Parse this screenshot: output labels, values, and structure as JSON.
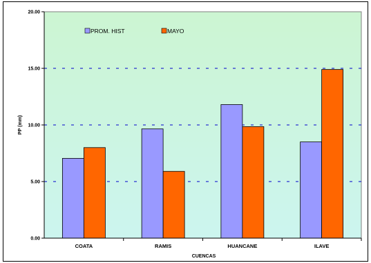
{
  "chart_data": {
    "type": "bar",
    "categories": [
      "COATA",
      "RAMIS",
      "HUANCANE",
      "ILAVE"
    ],
    "series": [
      {
        "name": "PROM. HIST",
        "values": [
          7.05,
          9.65,
          11.8,
          8.5
        ],
        "color": "#9999ff"
      },
      {
        "name": "MAYO",
        "values": [
          8.0,
          5.9,
          9.85,
          14.9
        ],
        "color": "#ff6600"
      }
    ],
    "title": "",
    "xlabel": "CUENCAS",
    "ylabel": "PP (mm)",
    "ylim": [
      0,
      20
    ],
    "yticks": [
      "0.00",
      "5.00",
      "10.00",
      "15.00",
      "20.00"
    ],
    "grid": true,
    "legend_placement": "top-left",
    "background_gradient": [
      "#ccf5d2",
      "#ccf5ef"
    ],
    "gridline_color": "#0000cc"
  }
}
